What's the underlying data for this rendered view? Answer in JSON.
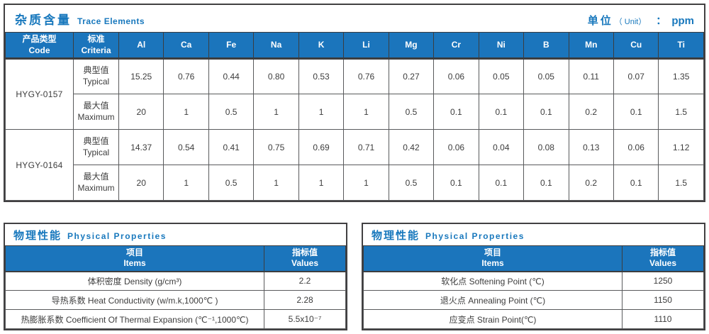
{
  "colors": {
    "header_blue": "#1b75bc",
    "title_blue": "#1878bd",
    "border_dark": "#414042",
    "border_light": "#595a5c",
    "text_dark": "#3d3d3d"
  },
  "trace_table": {
    "title_zh": "杂质含量",
    "title_en": "Trace Elements",
    "unit": {
      "zh": "单位",
      "en": "（ Unit）",
      "colon": "：",
      "value": "ppm"
    },
    "col_code": {
      "zh": "产品类型",
      "en": "Code"
    },
    "col_criteria": {
      "zh": "标准",
      "en": "Criteria"
    },
    "elements": [
      "Al",
      "Ca",
      "Fe",
      "Na",
      "K",
      "Li",
      "Mg",
      "Cr",
      "Ni",
      "B",
      "Mn",
      "Cu",
      "Ti"
    ],
    "products": [
      {
        "code": "HYGY-0157",
        "rows": [
          {
            "zh": "典型值",
            "en": "Typical",
            "values": [
              "15.25",
              "0.76",
              "0.44",
              "0.80",
              "0.53",
              "0.76",
              "0.27",
              "0.06",
              "0.05",
              "0.05",
              "0.11",
              "0.07",
              "1.35"
            ]
          },
          {
            "zh": "最大值",
            "en": "Maximum",
            "values": [
              "20",
              "1",
              "0.5",
              "1",
              "1",
              "1",
              "0.5",
              "0.1",
              "0.1",
              "0.1",
              "0.2",
              "0.1",
              "1.5"
            ]
          }
        ]
      },
      {
        "code": "HYGY-0164",
        "rows": [
          {
            "zh": "典型值",
            "en": "Typical",
            "values": [
              "14.37",
              "0.54",
              "0.41",
              "0.75",
              "0.69",
              "0.71",
              "0.42",
              "0.06",
              "0.04",
              "0.08",
              "0.13",
              "0.06",
              "1.12"
            ]
          },
          {
            "zh": "最大值",
            "en": "Maximum",
            "values": [
              "20",
              "1",
              "0.5",
              "1",
              "1",
              "1",
              "0.5",
              "0.1",
              "0.1",
              "0.1",
              "0.2",
              "0.1",
              "1.5"
            ]
          }
        ]
      }
    ]
  },
  "physical_left": {
    "title_zh": "物理性能",
    "title_en": "Physical Properties",
    "col_item": {
      "zh": "项目",
      "en": "Items"
    },
    "col_value": {
      "zh": "指标值",
      "en": "Values"
    },
    "rows": [
      {
        "item": "体积密度 Density (g/cm³)",
        "value": "2.2"
      },
      {
        "item": "导热系数 Heat Conductivity (w/m.k,1000℃ )",
        "value": "2.28"
      },
      {
        "item": "热膨胀系数 Coefficient Of Thermal Expansion (℃⁻¹,1000℃)",
        "value": "5.5x10⁻⁷"
      }
    ]
  },
  "physical_right": {
    "title_zh": "物理性能",
    "title_en": "Physical Properties",
    "col_item": {
      "zh": "项目",
      "en": "Items"
    },
    "col_value": {
      "zh": "指标值",
      "en": "Values"
    },
    "rows": [
      {
        "item": "软化点 Softening Point (℃)",
        "value": "1250"
      },
      {
        "item": "退火点 Annealing Point (℃)",
        "value": "1150"
      },
      {
        "item": "应变点 Strain Point(℃)",
        "value": "1110"
      }
    ]
  }
}
